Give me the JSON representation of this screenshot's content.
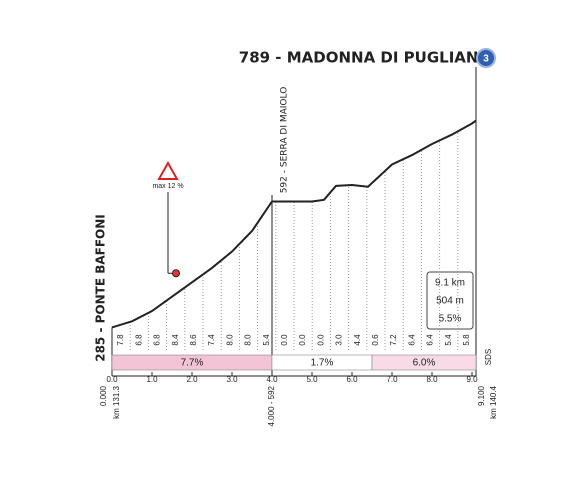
{
  "chart_data": {
    "type": "area",
    "title": "789 - MADONNA DI PUGLIANO",
    "stage_badge": "3",
    "start_label": "285 - PONTE BAFFONI",
    "summit_label": "592 - SERRA DI MAIOLO",
    "x": [
      0,
      0.5,
      1.0,
      1.5,
      2.0,
      2.5,
      3.0,
      3.5,
      4.0,
      4.5,
      5.0,
      5.3,
      5.6,
      6.0,
      6.4,
      7.0,
      7.5,
      8.0,
      8.5,
      9.0,
      9.1
    ],
    "values": [
      285,
      300,
      325,
      360,
      395,
      430,
      470,
      520,
      592,
      592,
      592,
      596,
      630,
      632,
      628,
      682,
      705,
      732,
      755,
      782,
      789
    ],
    "color": "#222222",
    "xlim": [
      0,
      9.1
    ],
    "ylim": [
      230,
      810
    ],
    "xticks": [
      {
        "value": 0,
        "label": "0.0"
      },
      {
        "value": 1,
        "label": "1.0"
      },
      {
        "value": 2,
        "label": "2.0"
      },
      {
        "value": 3,
        "label": "3.0"
      },
      {
        "value": 4,
        "label": "4.0"
      },
      {
        "value": 5,
        "label": "5.0"
      },
      {
        "value": 6,
        "label": "6.0"
      },
      {
        "value": 7,
        "label": "7.0"
      },
      {
        "value": 8,
        "label": "8.0"
      },
      {
        "value": 9,
        "label": "9.0"
      }
    ],
    "slope_labels": [
      "7.8",
      "6.8",
      "6.8",
      "8.4",
      "8.6",
      "7.4",
      "8.0",
      "8.0",
      "5.4",
      "0.0",
      "0.0",
      "0.0",
      "3.0",
      "4.4",
      "0.6",
      "7.2",
      "6.4",
      "6.4",
      "5.4",
      "5.8"
    ],
    "sections": [
      {
        "from": 0,
        "to": 4.0,
        "label": "7.7%",
        "color": "#f3c3d6"
      },
      {
        "from": 4.0,
        "to": 6.5,
        "label": "1.7%",
        "color": "#ffffff"
      },
      {
        "from": 6.5,
        "to": 9.1,
        "label": "6.0%",
        "color": "#f8dbe7"
      }
    ],
    "annotation": {
      "label": "max 12 %",
      "x": 1.6,
      "y": 417
    },
    "info": [
      "9.1 km",
      "504 m",
      "5.5%"
    ],
    "bottom_labels": [
      "0.000",
      "km 131.3",
      "4.000 - 592",
      "9.100",
      "km 140.4"
    ],
    "logo": "SDS"
  }
}
